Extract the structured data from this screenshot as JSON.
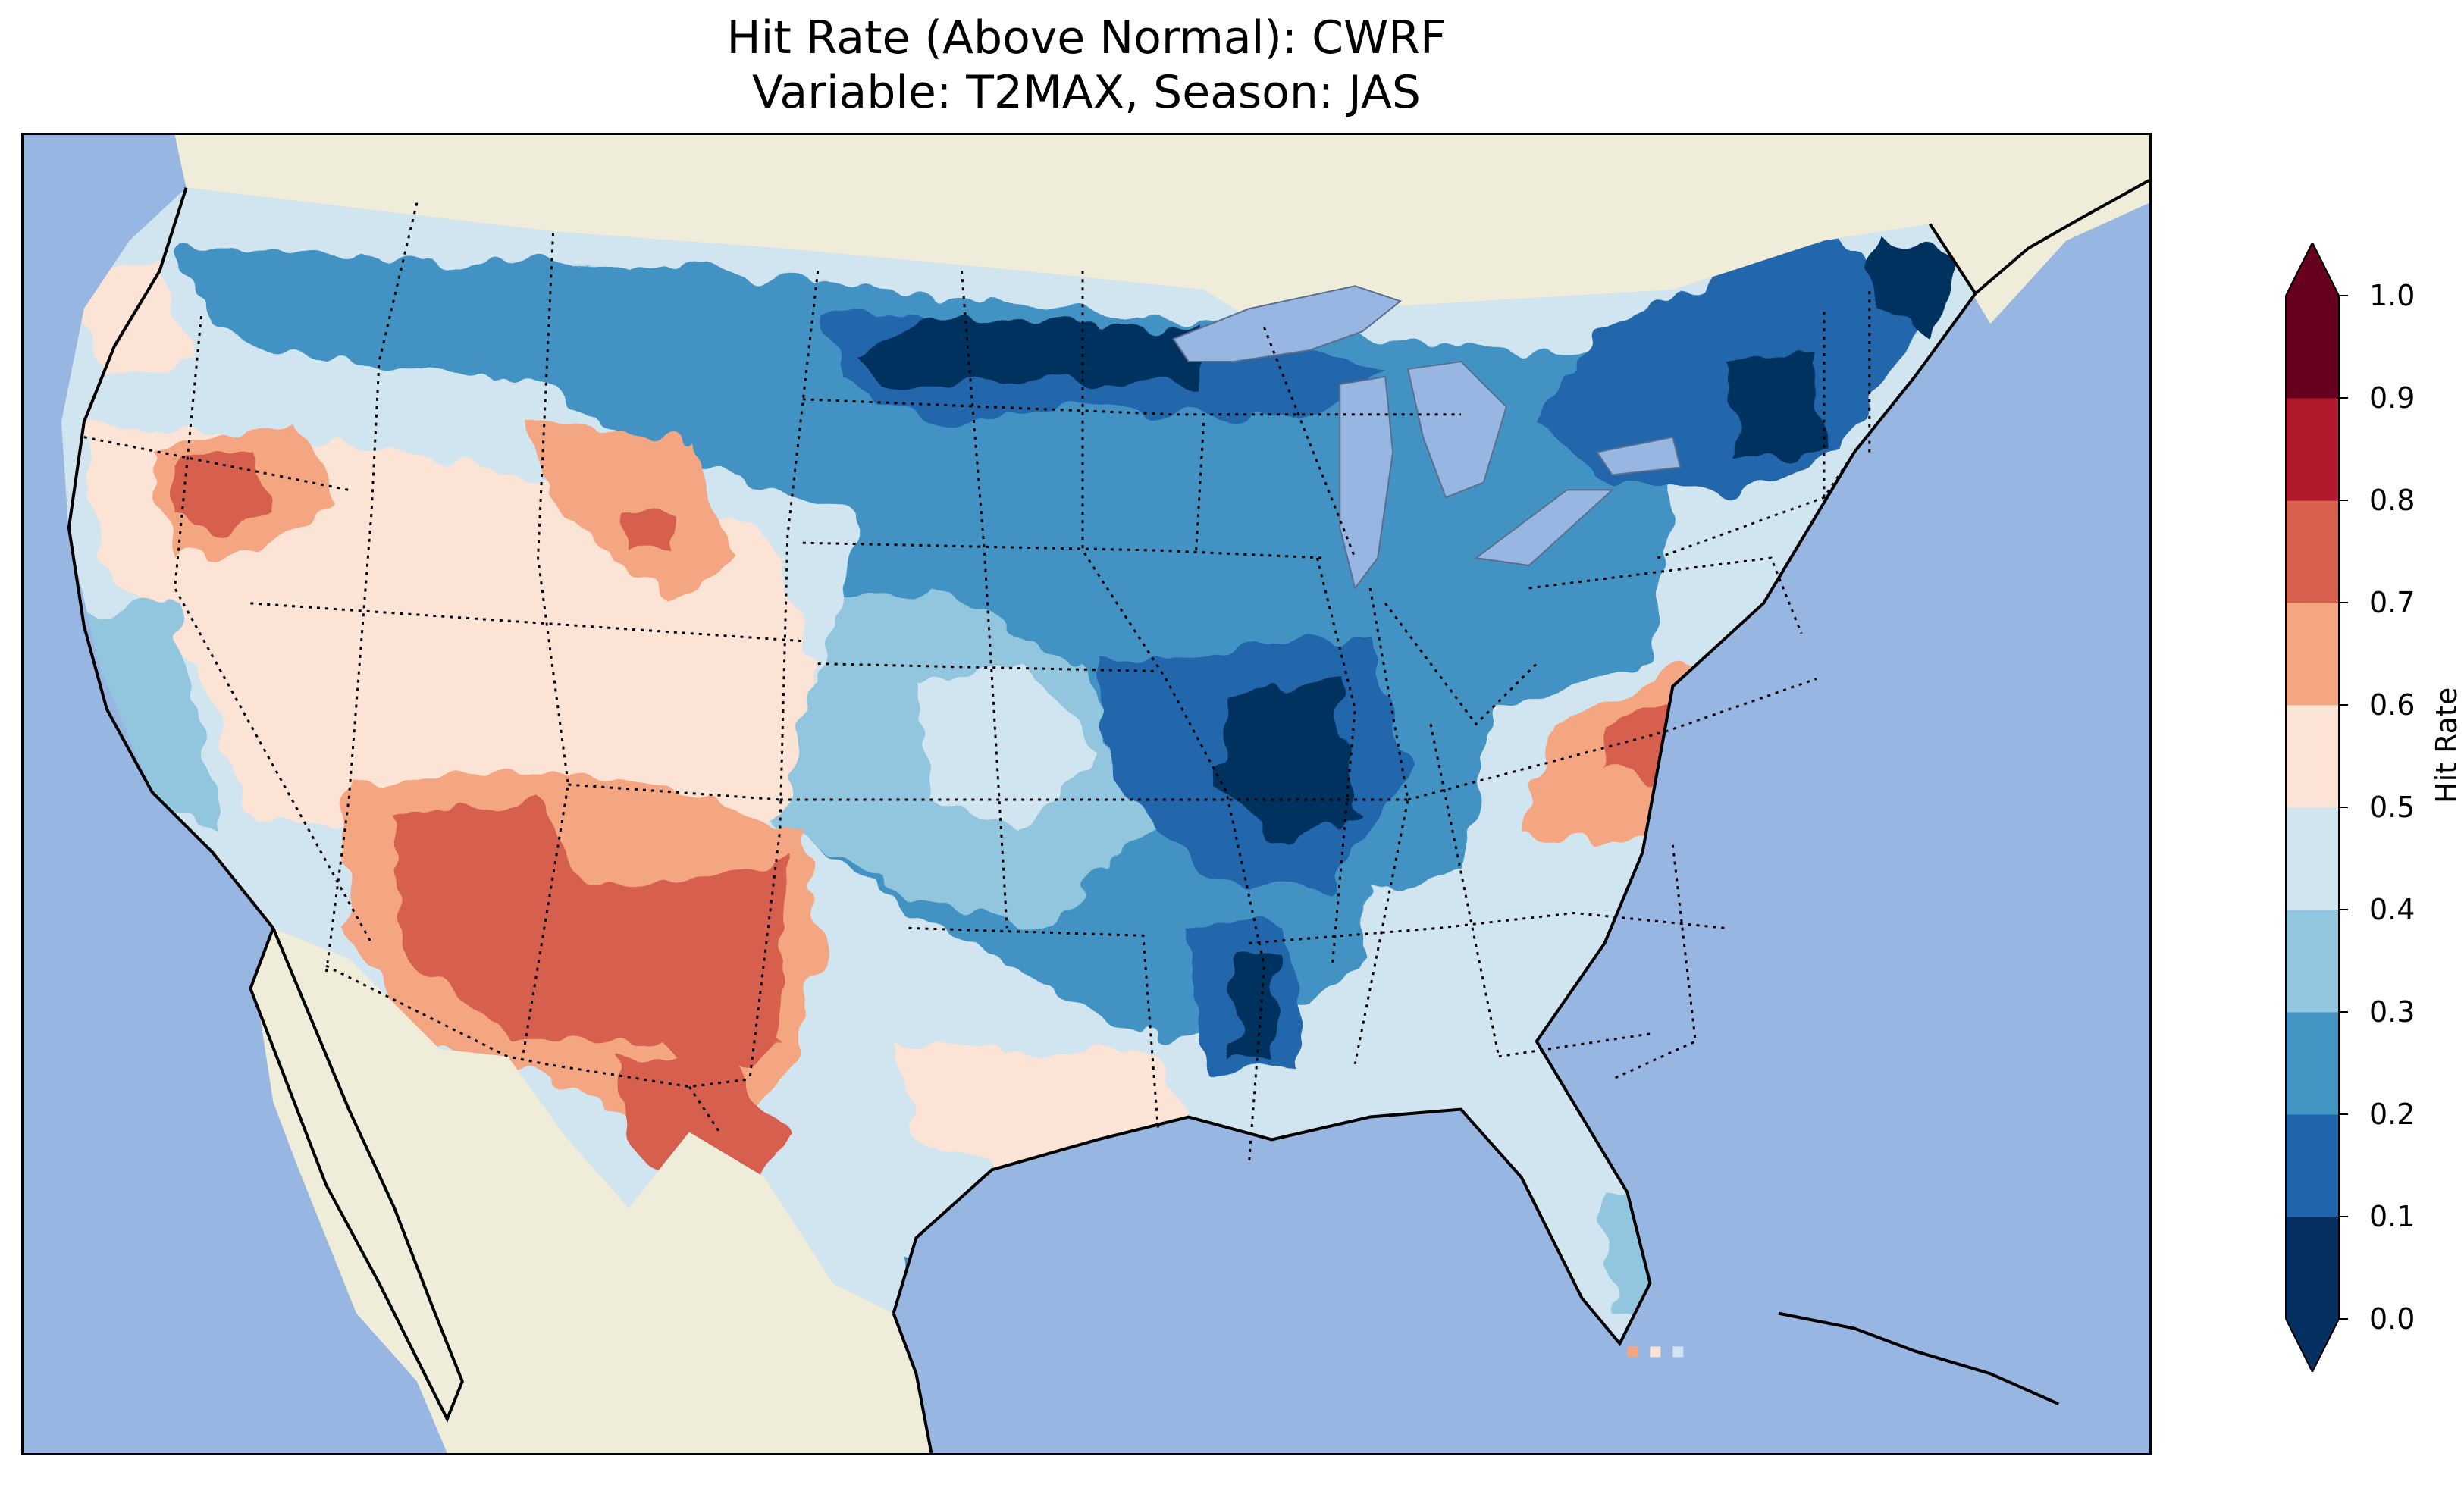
{
  "title": {
    "line1": "Hit Rate (Above Normal): CWRF",
    "line2": "Variable: T2MAX, Season: JAS"
  },
  "colorbar": {
    "label": "Hit Rate",
    "ticks": [
      "0.0",
      "0.1",
      "0.2",
      "0.3",
      "0.4",
      "0.5",
      "0.6",
      "0.7",
      "0.8",
      "0.9",
      "1.0"
    ],
    "colors": [
      "#053061",
      "#2166ac",
      "#4393c3",
      "#92c5de",
      "#d1e5f0",
      "#fbe3d6",
      "#f4a582",
      "#d6604d",
      "#b2182b",
      "#67001f"
    ],
    "extend": "both"
  },
  "map": {
    "ocean_color": "#97b6e1",
    "land_color": "#efedda",
    "lake_color": "#97b6e1",
    "features": [
      "coastlines",
      "state-borders",
      "lakes"
    ]
  }
}
